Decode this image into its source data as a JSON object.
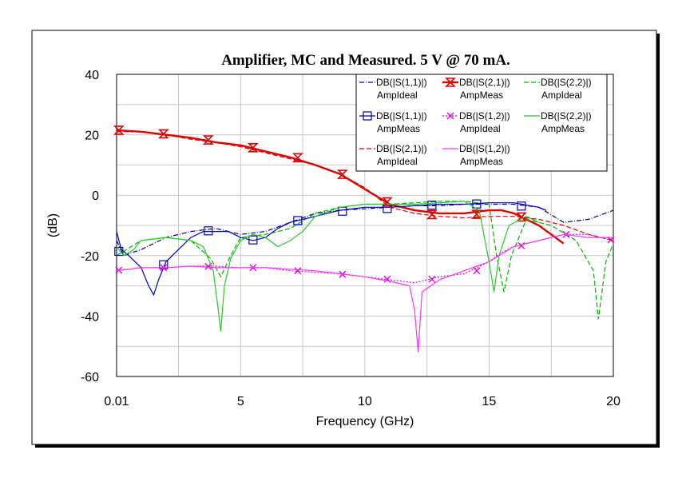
{
  "chart_data": {
    "type": "line",
    "title": "Amplifier, MC and Measured. 5 V @ 70 mA.",
    "xlabel": "Frequency (GHz)",
    "ylabel": "(dB)",
    "xlim": [
      0.01,
      20
    ],
    "ylim": [
      -60,
      40
    ],
    "x_ticks": [
      {
        "value": 0.01,
        "label": "0.01"
      },
      {
        "value": 5,
        "label": "5"
      },
      {
        "value": 10,
        "label": "10"
      },
      {
        "value": 15,
        "label": "15"
      },
      {
        "value": 20,
        "label": "20"
      }
    ],
    "y_ticks": [
      {
        "value": 40,
        "label": "40"
      },
      {
        "value": 20,
        "label": "20"
      },
      {
        "value": 0,
        "label": "0"
      },
      {
        "value": -20,
        "label": "-20"
      },
      {
        "value": -40,
        "label": "-40"
      },
      {
        "value": -60,
        "label": "-60"
      }
    ],
    "grid": true,
    "legend_position": "top-right",
    "series": [
      {
        "name": "DB(|S(1,1)|)",
        "source": "AmpIdeal",
        "color": "#00008b",
        "dash": "dashdot",
        "marker": "none",
        "points": [
          [
            0.01,
            -15
          ],
          [
            0.3,
            -20
          ],
          [
            1,
            -18
          ],
          [
            2,
            -14
          ],
          [
            3,
            -12
          ],
          [
            4,
            -11
          ],
          [
            5,
            -13
          ],
          [
            6,
            -12
          ],
          [
            7,
            -9
          ],
          [
            8,
            -6
          ],
          [
            9,
            -5
          ],
          [
            10,
            -4.5
          ],
          [
            11,
            -4
          ],
          [
            12,
            -3.5
          ],
          [
            13,
            -3.5
          ],
          [
            14,
            -3
          ],
          [
            15,
            -3
          ],
          [
            16,
            -3
          ],
          [
            17,
            -4
          ],
          [
            18,
            -9
          ],
          [
            19,
            -8
          ],
          [
            20,
            -5
          ]
        ]
      },
      {
        "name": "DB(|S(2,1)|)",
        "source": "AmpMeas",
        "color": "#e00000",
        "dash": "solid",
        "marker": "hourglass",
        "points": [
          [
            0.01,
            21.5
          ],
          [
            1,
            21
          ],
          [
            2,
            20
          ],
          [
            3,
            19
          ],
          [
            4,
            17.5
          ],
          [
            5,
            16.5
          ],
          [
            6,
            14.5
          ],
          [
            7,
            12.5
          ],
          [
            8,
            10
          ],
          [
            9,
            7
          ],
          [
            10,
            2
          ],
          [
            11,
            -3
          ],
          [
            12,
            -5
          ],
          [
            13,
            -6
          ],
          [
            14,
            -6
          ],
          [
            15,
            -5
          ],
          [
            15.5,
            -5
          ],
          [
            16,
            -6
          ],
          [
            17,
            -10
          ],
          [
            18,
            -16
          ]
        ],
        "marker_points": [
          [
            0.1,
            21.5
          ],
          [
            1.9,
            20.3
          ],
          [
            3.7,
            18.3
          ],
          [
            5.5,
            15.7
          ],
          [
            7.3,
            12.4
          ],
          [
            9.1,
            6.9
          ],
          [
            10.9,
            -2.2
          ],
          [
            12.7,
            -6.4
          ],
          [
            14.5,
            -6.3
          ],
          [
            16.3,
            -7.2
          ]
        ]
      },
      {
        "name": "DB(|S(2,2)|)",
        "source": "AmpIdeal",
        "color": "#00b000",
        "dash": "dashed",
        "marker": "none",
        "points": [
          [
            0.01,
            -20
          ],
          [
            1,
            -15
          ],
          [
            2,
            -14
          ],
          [
            3,
            -15
          ],
          [
            3.8,
            -21
          ],
          [
            4.2,
            -27
          ],
          [
            4.6,
            -20
          ],
          [
            5,
            -14
          ],
          [
            6,
            -13
          ],
          [
            7,
            -11
          ],
          [
            8,
            -6
          ],
          [
            9,
            -4
          ],
          [
            10,
            -3
          ],
          [
            11,
            -3
          ],
          [
            12,
            -2.5
          ],
          [
            13,
            -2
          ],
          [
            14,
            -2
          ],
          [
            15,
            -3
          ],
          [
            15.3,
            -20
          ],
          [
            15.6,
            -32
          ],
          [
            15.9,
            -20
          ],
          [
            16.5,
            -8
          ],
          [
            17.5,
            -10
          ],
          [
            18.5,
            -15
          ],
          [
            19.2,
            -25
          ],
          [
            19.4,
            -41
          ],
          [
            19.7,
            -22
          ],
          [
            20,
            -16
          ]
        ]
      },
      {
        "name": "DB(|S(1,1)|)",
        "source": "AmpMeas",
        "color": "#0000c0",
        "dash": "solid",
        "marker": "square",
        "points": [
          [
            0.01,
            -12
          ],
          [
            0.2,
            -18
          ],
          [
            0.5,
            -20
          ],
          [
            1,
            -24
          ],
          [
            1.3,
            -30
          ],
          [
            1.5,
            -33
          ],
          [
            1.7,
            -28
          ],
          [
            2,
            -22
          ],
          [
            2.5,
            -18
          ],
          [
            3,
            -14
          ],
          [
            3.5,
            -12
          ],
          [
            4,
            -12
          ],
          [
            4.5,
            -12
          ],
          [
            5,
            -14
          ],
          [
            5.5,
            -15
          ],
          [
            6,
            -14
          ],
          [
            6.5,
            -11
          ],
          [
            7,
            -9
          ],
          [
            8,
            -7
          ],
          [
            9,
            -5
          ],
          [
            10,
            -4
          ],
          [
            11,
            -4
          ],
          [
            12,
            -3.5
          ],
          [
            13,
            -3
          ],
          [
            14,
            -3
          ],
          [
            15,
            -2.5
          ],
          [
            16,
            -2.5
          ],
          [
            17,
            -4
          ],
          [
            17.3,
            -5
          ]
        ],
        "marker_points": [
          [
            0.1,
            -18.6
          ],
          [
            1.9,
            -23
          ],
          [
            3.7,
            -11.8
          ],
          [
            5.5,
            -14.8
          ],
          [
            7.3,
            -8.4
          ],
          [
            9.1,
            -5.3
          ],
          [
            10.9,
            -4.4
          ],
          [
            12.7,
            -3.3
          ],
          [
            14.5,
            -2.9
          ],
          [
            16.3,
            -3.6
          ]
        ]
      },
      {
        "name": "DB(|S(1,2)|)",
        "source": "AmpIdeal",
        "color": "#e000e0",
        "dash": "dotted",
        "marker": "x",
        "points": [
          [
            0.01,
            -25
          ],
          [
            1,
            -24
          ],
          [
            2,
            -24
          ],
          [
            3,
            -23.5
          ],
          [
            4,
            -23.5
          ],
          [
            5,
            -24
          ],
          [
            6,
            -24
          ],
          [
            7,
            -25
          ],
          [
            8,
            -25.5
          ],
          [
            9,
            -26
          ],
          [
            10,
            -27
          ],
          [
            11,
            -28
          ],
          [
            12,
            -29
          ],
          [
            13,
            -27
          ],
          [
            14,
            -26
          ],
          [
            15,
            -22
          ],
          [
            15.5,
            -19
          ],
          [
            16,
            -17
          ],
          [
            17,
            -15
          ],
          [
            17.5,
            -14
          ],
          [
            18,
            -13
          ],
          [
            19,
            -13
          ],
          [
            20,
            -15
          ]
        ],
        "marker_points": [
          [
            0.1,
            -24.8
          ],
          [
            1.9,
            -24
          ],
          [
            3.7,
            -23.6
          ],
          [
            5.5,
            -24
          ],
          [
            7.3,
            -25
          ],
          [
            9.1,
            -26.2
          ],
          [
            10.9,
            -27.8
          ],
          [
            12.7,
            -27.8
          ],
          [
            14.5,
            -25
          ],
          [
            16.3,
            -16.7
          ],
          [
            18.1,
            -13
          ],
          [
            19.9,
            -14.8
          ]
        ]
      },
      {
        "name": "DB(|S(2,2)|)",
        "source": "AmpMeas",
        "color": "#22cc22",
        "dash": "solid",
        "marker": "none",
        "points": [
          [
            0.01,
            -17
          ],
          [
            0.3,
            -20
          ],
          [
            0.7,
            -18
          ],
          [
            1,
            -15
          ],
          [
            2,
            -14
          ],
          [
            3,
            -15
          ],
          [
            3.5,
            -17
          ],
          [
            3.9,
            -25
          ],
          [
            4.1,
            -38
          ],
          [
            4.2,
            -45
          ],
          [
            4.35,
            -30
          ],
          [
            4.6,
            -21
          ],
          [
            5,
            -15
          ],
          [
            5.5,
            -13
          ],
          [
            6,
            -14
          ],
          [
            6.5,
            -17
          ],
          [
            7,
            -15
          ],
          [
            7.5,
            -12
          ],
          [
            8,
            -7
          ],
          [
            9,
            -4
          ],
          [
            10,
            -3
          ],
          [
            11,
            -3
          ],
          [
            12,
            -3
          ],
          [
            13,
            -2.5
          ],
          [
            14,
            -2
          ],
          [
            14.6,
            -5
          ],
          [
            15,
            -22
          ],
          [
            15.2,
            -32
          ],
          [
            15.4,
            -20
          ],
          [
            15.8,
            -10
          ],
          [
            16.5,
            -7
          ],
          [
            17,
            -9
          ]
        ]
      },
      {
        "name": "DB(|S(2,1)|)",
        "source": "AmpIdeal",
        "color": "#e00000",
        "dash": "dashed",
        "marker": "none",
        "points": [
          [
            0.01,
            21
          ],
          [
            1,
            21
          ],
          [
            2,
            20
          ],
          [
            3,
            18.5
          ],
          [
            4,
            17.5
          ],
          [
            5,
            16
          ],
          [
            6,
            14
          ],
          [
            7,
            12
          ],
          [
            8,
            10
          ],
          [
            9,
            7
          ],
          [
            10,
            2.5
          ],
          [
            11,
            -4
          ],
          [
            12,
            -6
          ],
          [
            13,
            -7
          ],
          [
            14,
            -7.5
          ],
          [
            15,
            -7
          ],
          [
            16,
            -7
          ],
          [
            17,
            -8
          ],
          [
            18,
            -10
          ],
          [
            19,
            -13
          ],
          [
            20,
            -15
          ]
        ]
      },
      {
        "name": "DB(|S(1,2)|)",
        "source": "AmpMeas",
        "color": "#ff33ff",
        "dash": "solid",
        "marker": "none",
        "points": [
          [
            0.01,
            -25
          ],
          [
            1,
            -24
          ],
          [
            2,
            -24
          ],
          [
            3,
            -23.5
          ],
          [
            4,
            -24
          ],
          [
            5,
            -24
          ],
          [
            6,
            -24
          ],
          [
            7,
            -24.5
          ],
          [
            8,
            -25
          ],
          [
            9,
            -26
          ],
          [
            10,
            -27
          ],
          [
            11,
            -28.5
          ],
          [
            11.8,
            -30
          ],
          [
            12,
            -38
          ],
          [
            12.15,
            -52
          ],
          [
            12.3,
            -32
          ],
          [
            13,
            -28
          ],
          [
            14,
            -25
          ],
          [
            15,
            -22
          ],
          [
            16,
            -17
          ],
          [
            17,
            -15
          ],
          [
            18,
            -13
          ],
          [
            19,
            -14
          ],
          [
            20,
            -14
          ]
        ]
      }
    ]
  }
}
